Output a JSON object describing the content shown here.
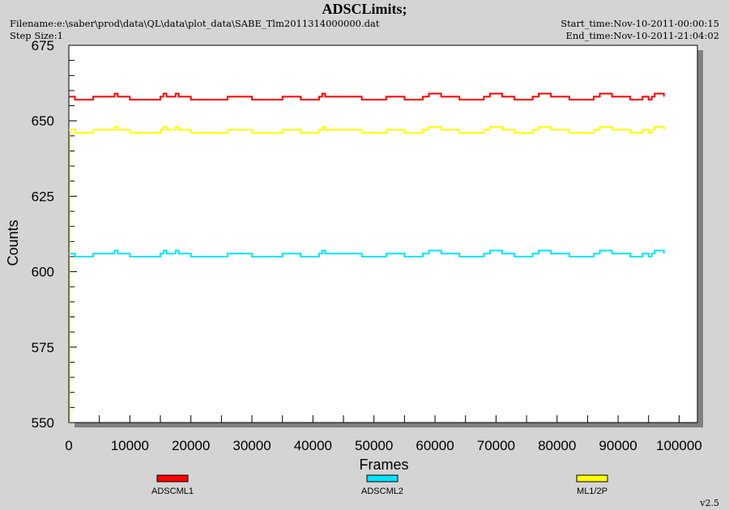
{
  "header": {
    "title": "ADSCLimits;",
    "filename": "Filename:e:\\saber\\prod\\data\\QL\\data\\plot_data\\SABE_Tlm2011314000000.dat",
    "step_size": "Step Size:1",
    "start_time": "Start_time:Nov-10-2011-00:00:15",
    "end_time": "End_time:Nov-10-2011-21:04:02"
  },
  "version": "v2.5",
  "colors": {
    "background": "#d4d4d4",
    "plot_area": "#ffffff",
    "adscml1": "#ff0000",
    "adscml2": "#00e5ff",
    "ml12p": "#ffff00"
  },
  "chart_data": {
    "type": "line",
    "xlabel": "Frames",
    "ylabel": "Counts",
    "xlim": [
      0,
      103000
    ],
    "ylim": [
      550,
      675
    ],
    "xticks": [
      0,
      10000,
      20000,
      30000,
      40000,
      50000,
      60000,
      70000,
      80000,
      90000,
      100000
    ],
    "yticks": [
      550,
      575,
      600,
      625,
      650,
      675
    ],
    "grid": false,
    "legend_position": "bottom",
    "series": [
      {
        "name": "ADSCML1",
        "color": "#ff0000",
        "x": [
          0,
          1000,
          4000,
          7000,
          7500,
          8000,
          10000,
          15000,
          15500,
          16000,
          17000,
          17500,
          18000,
          20000,
          26000,
          30000,
          35000,
          38000,
          41000,
          41500,
          42000,
          48000,
          52000,
          55000,
          58000,
          59000,
          61000,
          64000,
          68000,
          69000,
          71000,
          73000,
          76000,
          77000,
          79000,
          82000,
          86000,
          87000,
          89000,
          92000,
          94000,
          95000,
          95500,
          96000,
          97500
        ],
        "y": [
          658,
          657,
          658,
          658,
          659,
          658,
          657,
          658,
          659,
          658,
          658,
          659,
          658,
          657,
          658,
          657,
          658,
          657,
          658,
          659,
          658,
          657,
          658,
          657,
          658,
          659,
          658,
          657,
          658,
          659,
          658,
          657,
          658,
          659,
          658,
          657,
          658,
          659,
          658,
          657,
          658,
          657,
          658,
          659,
          658
        ]
      },
      {
        "name": "ADSCML2",
        "color": "#00e5ff",
        "x": [
          0,
          1000,
          4000,
          7000,
          7500,
          8000,
          10000,
          15000,
          15500,
          16000,
          17000,
          17500,
          18000,
          20000,
          26000,
          30000,
          35000,
          38000,
          41000,
          41500,
          42000,
          48000,
          52000,
          55000,
          58000,
          59000,
          61000,
          64000,
          68000,
          69000,
          71000,
          73000,
          76000,
          77000,
          79000,
          82000,
          86000,
          87000,
          89000,
          92000,
          94000,
          95000,
          95500,
          96000,
          97500
        ],
        "y": [
          606,
          605,
          606,
          606,
          607,
          606,
          605,
          606,
          607,
          606,
          606,
          607,
          606,
          605,
          606,
          605,
          606,
          605,
          606,
          607,
          606,
          605,
          606,
          605,
          606,
          607,
          606,
          605,
          606,
          607,
          606,
          605,
          606,
          607,
          606,
          605,
          606,
          607,
          606,
          605,
          606,
          605,
          606,
          607,
          606
        ]
      },
      {
        "name": "ML1/2P",
        "color": "#ffff00",
        "x": [
          0,
          1000,
          4000,
          7000,
          7500,
          8000,
          10000,
          15000,
          15500,
          16000,
          17000,
          17500,
          18000,
          20000,
          26000,
          30000,
          35000,
          38000,
          41000,
          41500,
          42000,
          48000,
          52000,
          55000,
          58000,
          59000,
          61000,
          64000,
          68000,
          69000,
          71000,
          73000,
          76000,
          77000,
          79000,
          82000,
          86000,
          87000,
          89000,
          92000,
          94000,
          95000,
          95500,
          96000,
          97500
        ],
        "y": [
          647,
          646,
          647,
          647,
          648,
          647,
          646,
          647,
          648,
          647,
          647,
          648,
          647,
          646,
          647,
          646,
          647,
          646,
          647,
          648,
          647,
          646,
          647,
          646,
          647,
          648,
          647,
          646,
          647,
          648,
          647,
          646,
          647,
          648,
          647,
          646,
          647,
          648,
          647,
          646,
          647,
          646,
          647,
          648,
          647
        ]
      }
    ]
  }
}
